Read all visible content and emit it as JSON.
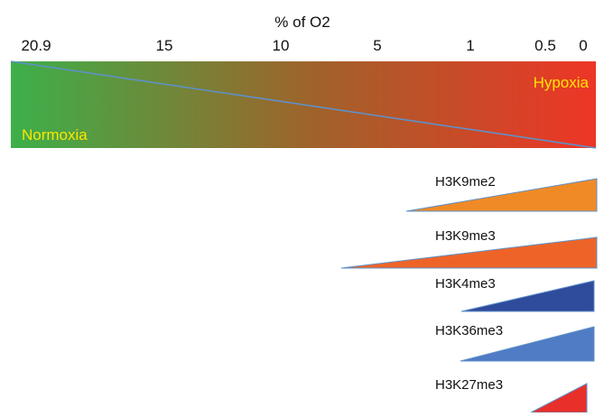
{
  "axis": {
    "title": "% of O2",
    "ticks": [
      "20.9",
      "15",
      "10",
      "5",
      "1",
      "0.5",
      "0"
    ]
  },
  "gradient_bar": {
    "left_label": "Normoxia",
    "right_label": "Hypoxia",
    "colors": {
      "start": "#3cb04a",
      "mid": "#a0622a",
      "end": "#ee3526",
      "label": "#ffe600",
      "diagonal": "#5f91c8"
    }
  },
  "marks": [
    {
      "label": "H3K9me2",
      "color": "#f08a26"
    },
    {
      "label": "H3K9me3",
      "color": "#ee6428"
    },
    {
      "label": "H3K4me3",
      "color": "#2f4b9c"
    },
    {
      "label": "H3K36me3",
      "color": "#4f7cc4"
    },
    {
      "label": "H3K27me3",
      "color": "#e92f2a"
    }
  ]
}
